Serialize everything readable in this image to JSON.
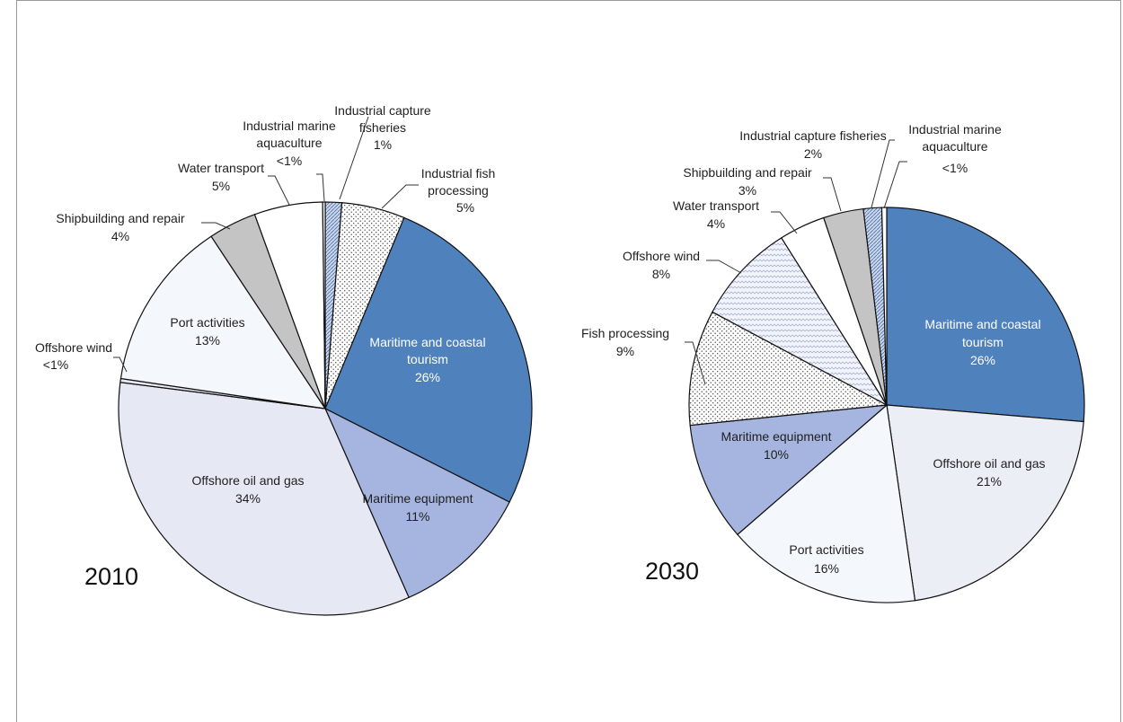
{
  "chart_data": [
    {
      "type": "pie",
      "title": "2010",
      "slices": [
        {
          "label": [
            "Industrial capture",
            "fisheries"
          ],
          "value_label": "1%",
          "value": 1.3,
          "fill": "#c9d6eb",
          "pattern": "diag"
        },
        {
          "label": [
            "Industrial fish",
            "processing"
          ],
          "value_label": "5%",
          "value": 5.0,
          "fill": "#ffffff",
          "pattern": "dots"
        },
        {
          "label": [
            "Maritime and coastal",
            "tourism"
          ],
          "value_label": "26%",
          "value": 26.5,
          "fill": "#4f81bd",
          "pattern": "none",
          "text_color": "#ffffff"
        },
        {
          "label": [
            "Maritime equipment"
          ],
          "value_label": "11%",
          "value": 11.0,
          "fill": "#a6b5e0",
          "pattern": "none"
        },
        {
          "label": [
            "Offshore oil and gas"
          ],
          "value_label": "34%",
          "value": 34.0,
          "fill": "#e6e9f4",
          "pattern": "none"
        },
        {
          "label": [
            "Offshore wind"
          ],
          "value_label": "<1%",
          "value": 0.3,
          "fill": "#e6e9f4",
          "pattern": "none"
        },
        {
          "label": [
            "Port activities"
          ],
          "value_label": "13%",
          "value": 13.5,
          "fill": "#f4f8fd",
          "pattern": "none"
        },
        {
          "label": [
            "Shipbuilding and repair"
          ],
          "value_label": "4%",
          "value": 3.8,
          "fill": "#c4c4c4",
          "pattern": "none"
        },
        {
          "label": [
            "Water transport"
          ],
          "value_label": "5%",
          "value": 5.4,
          "fill": "#ffffff",
          "pattern": "none"
        },
        {
          "label": [
            "Industrial marine",
            "aquaculture"
          ],
          "value_label": "<1%",
          "value": 0.2,
          "fill": "#ffffff",
          "pattern": "none"
        }
      ]
    },
    {
      "type": "pie",
      "title": "2030",
      "slices": [
        {
          "label": [
            "Maritime and coastal",
            "tourism"
          ],
          "value_label": "26%",
          "value": 26.5,
          "fill": "#4f81bd",
          "pattern": "none",
          "text_color": "#ffffff"
        },
        {
          "label": [
            "Offshore oil and gas"
          ],
          "value_label": "21%",
          "value": 21.5,
          "fill": "#eceef6",
          "pattern": "none"
        },
        {
          "label": [
            "Port activities"
          ],
          "value_label": "16%",
          "value": 16.0,
          "fill": "#f4f8fd",
          "pattern": "none"
        },
        {
          "label": [
            "Maritime equipment"
          ],
          "value_label": "10%",
          "value": 9.8,
          "fill": "#a6b5e0",
          "pattern": "none"
        },
        {
          "label": [
            "Fish processing"
          ],
          "value_label": "9%",
          "value": 9.5,
          "fill": "#ffffff",
          "pattern": "dots"
        },
        {
          "label": [
            "Offshore wind"
          ],
          "value_label": "8%",
          "value": 8.3,
          "fill": "#f2f4fa",
          "pattern": "zigzag"
        },
        {
          "label": [
            "Water transport"
          ],
          "value_label": "4%",
          "value": 3.8,
          "fill": "#ffffff",
          "pattern": "none"
        },
        {
          "label": [
            "Shipbuilding and repair"
          ],
          "value_label": "3%",
          "value": 3.3,
          "fill": "#c4c4c4",
          "pattern": "none"
        },
        {
          "label": [
            "Industrial capture fisheries"
          ],
          "value_label": "2%",
          "value": 1.5,
          "fill": "#c9d6eb",
          "pattern": "diag"
        },
        {
          "label": [
            "Industrial marine",
            "aquaculture"
          ],
          "value_label": "<1%",
          "value": 0.4,
          "fill": "#ffffff",
          "pattern": "none"
        }
      ]
    }
  ]
}
